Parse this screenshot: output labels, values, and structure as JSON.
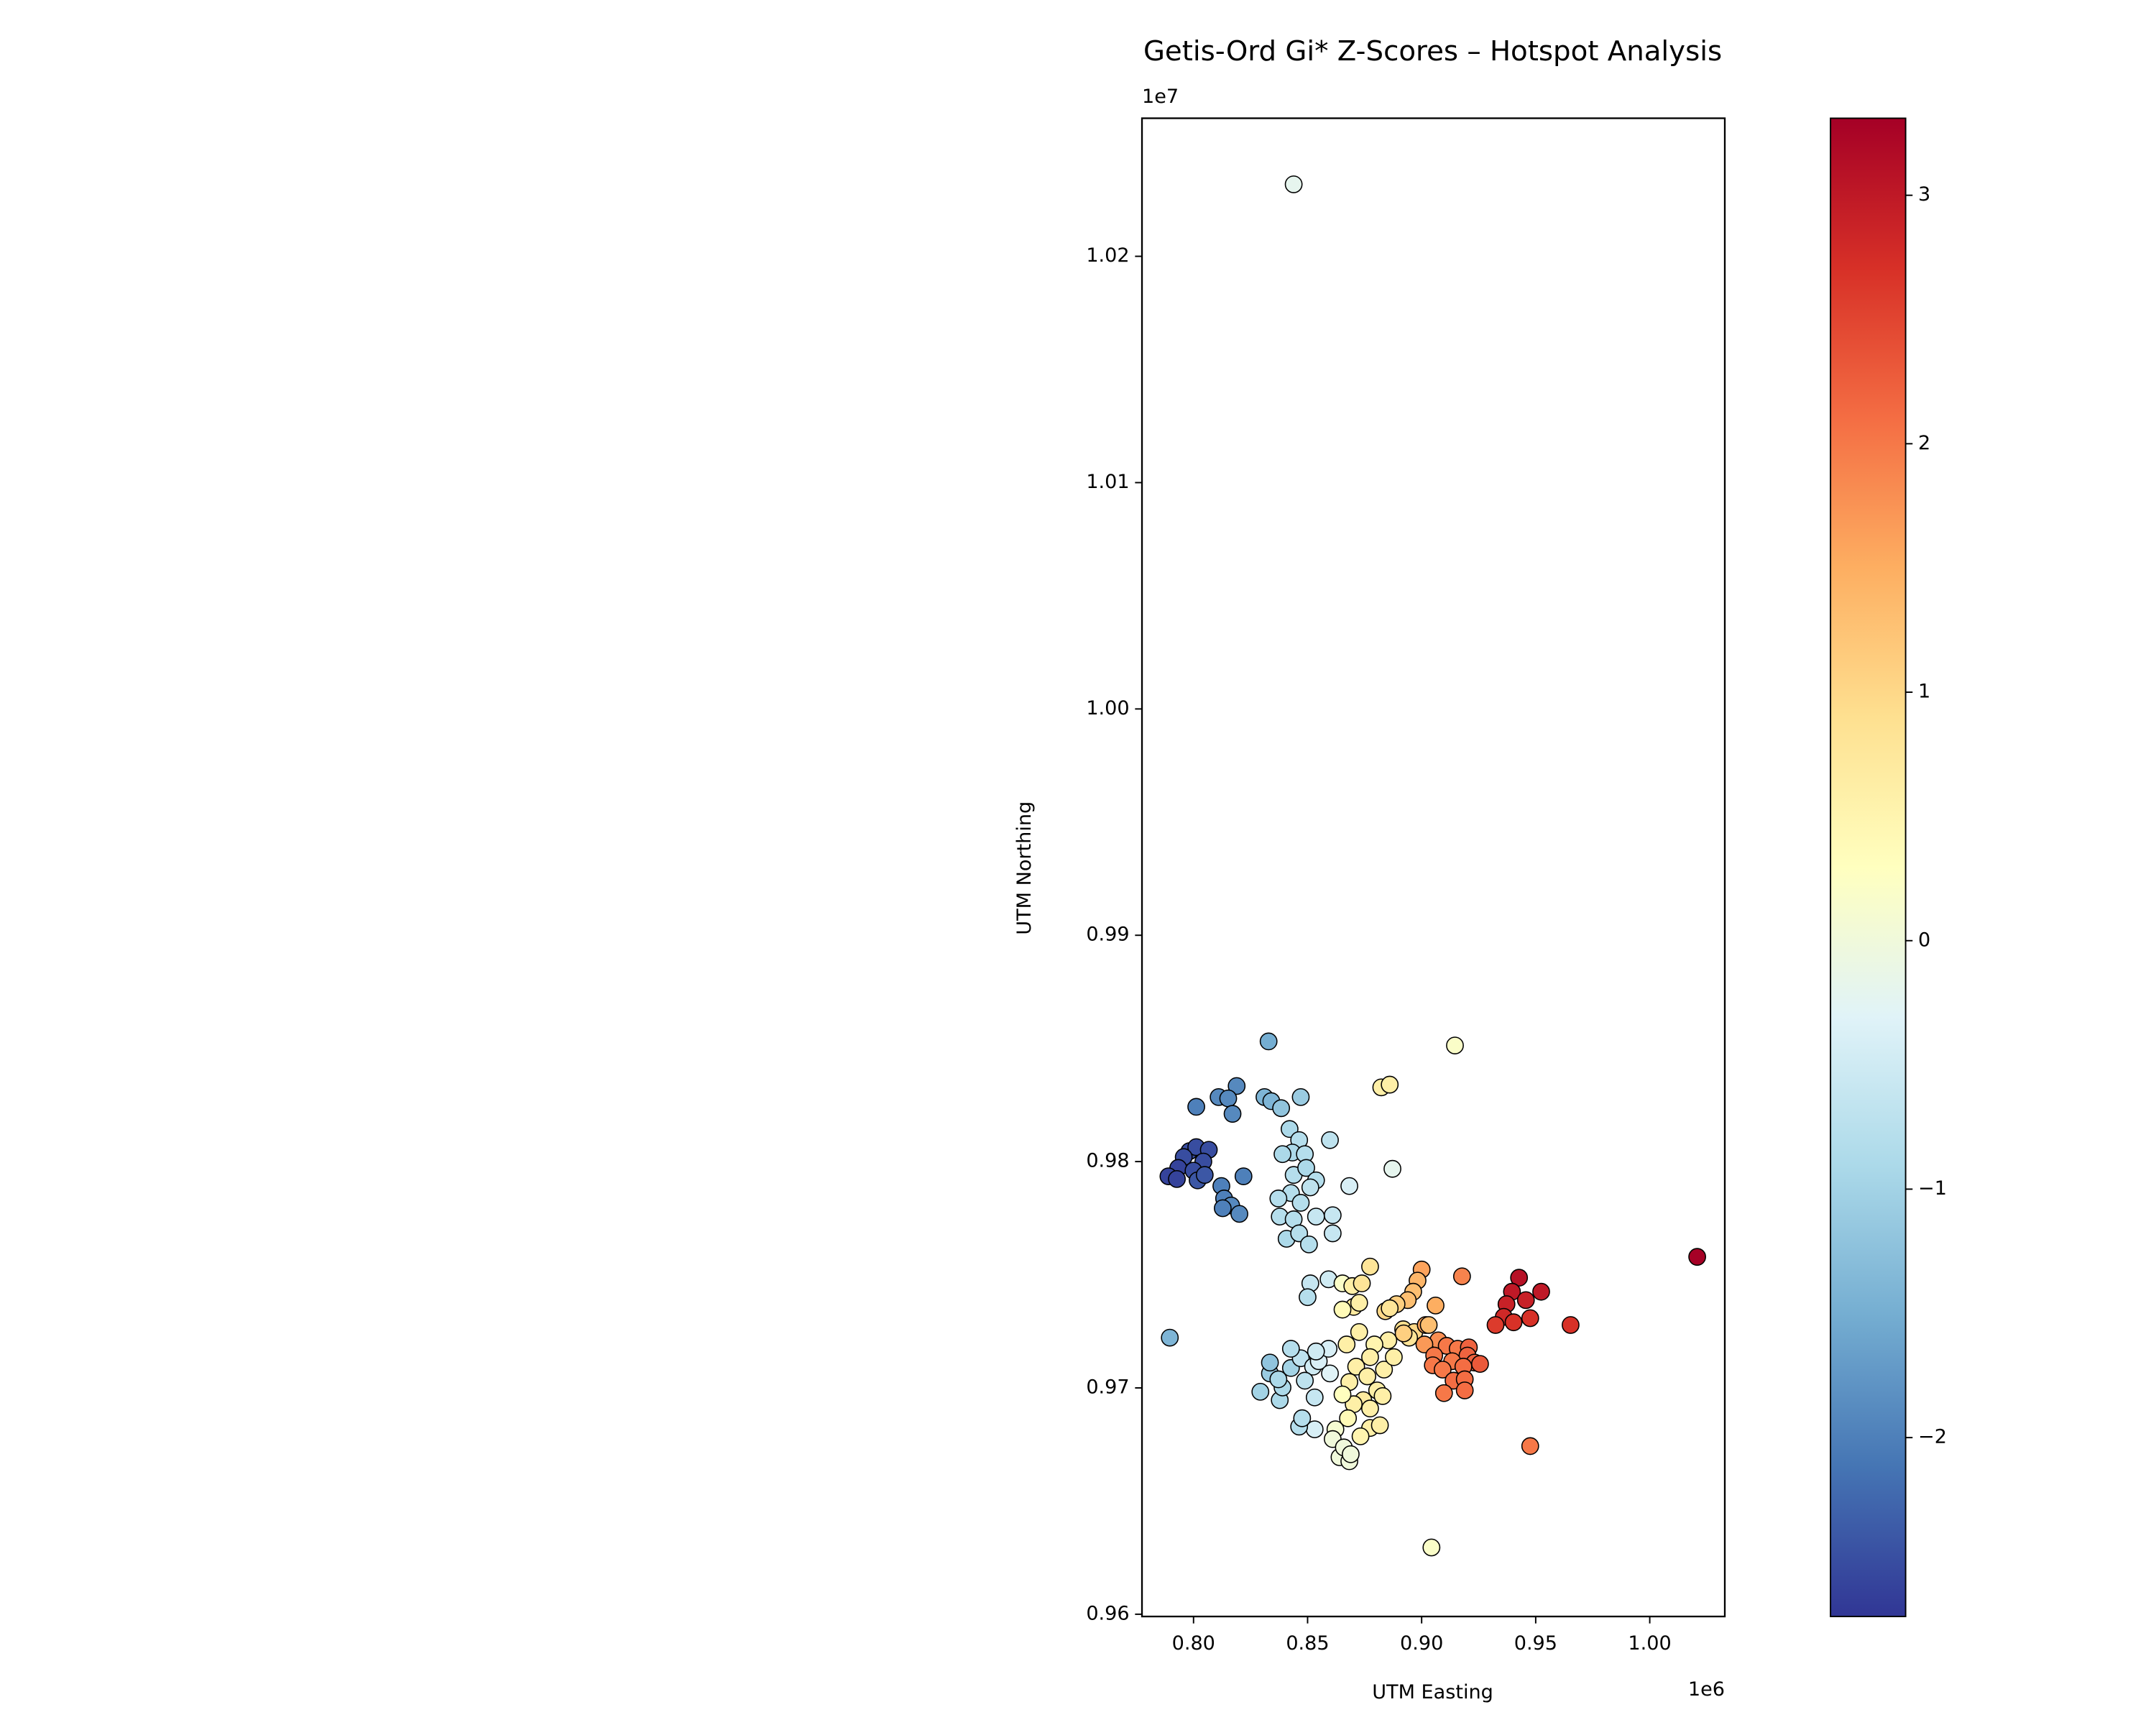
{
  "chart_data": {
    "type": "scatter",
    "title": "Getis-Ord Gi* Z-Scores – Hotspot Analysis",
    "x_label": "UTM Easting",
    "y_label": "UTM Northing",
    "x_offset_text": "1e6",
    "y_offset_text": "1e7",
    "xlim": [
      777400,
      1032900
    ],
    "ylim": [
      9599000,
      10261000
    ],
    "xticks": [
      {
        "value": 800000,
        "label": "0.80"
      },
      {
        "value": 850000,
        "label": "0.85"
      },
      {
        "value": 900000,
        "label": "0.90"
      },
      {
        "value": 950000,
        "label": "0.95"
      },
      {
        "value": 1000000,
        "label": "1.00"
      }
    ],
    "yticks": [
      {
        "value": 9600000,
        "label": "0.96"
      },
      {
        "value": 9700000,
        "label": "0.97"
      },
      {
        "value": 9800000,
        "label": "0.98"
      },
      {
        "value": 9900000,
        "label": "0.99"
      },
      {
        "value": 10000000,
        "label": "1.00"
      },
      {
        "value": 10100000,
        "label": "1.01"
      },
      {
        "value": 10200000,
        "label": "1.02"
      }
    ],
    "colormap": "RdYlBu_r",
    "clim": [
      -2.72,
      3.31
    ],
    "cticks": [
      {
        "value": -2,
        "label": "−2"
      },
      {
        "value": -1,
        "label": "−1"
      },
      0,
      1,
      2,
      3
    ],
    "x": [
      843900,
      914600,
      832900,
      882300,
      886000,
      847000,
      818900,
      811000,
      815200,
      817100,
      801200,
      831100,
      834100,
      838400,
      798200,
      801200,
      806700,
      795700,
      804300,
      793300,
      800000,
      789000,
      792700,
      801800,
      804900,
      812200,
      821900,
      813400,
      816500,
      820100,
      812800,
      842100,
      846300,
      843300,
      848800,
      839000,
      859800,
      843900,
      849400,
      853700,
      842700,
      847000,
      837200,
      851200,
      868300,
      887200,
      837800,
      843900,
      853700,
      861000,
      840800,
      846300,
      850600,
      861000,
      851200,
      850000,
      859200,
      865300,
      869600,
      877400,
      873800,
      870200,
      865300,
      872600,
      900000,
      898200,
      896300,
      893900,
      889000,
      884100,
      906100,
      917700,
      942700,
      939600,
      952400,
      945700,
      937200,
      936000,
      947600,
      940300,
      932400,
      965300,
      1020800,
      789600,
      891900,
      896800,
      901800,
      894500,
      907300,
      901200,
      911000,
      915800,
      920700,
      920100,
      905500,
      913400,
      904900,
      909200,
      923200,
      918300,
      925600,
      914000,
      918900,
      909800,
      918900,
      947600,
      904300,
      885400,
      879300,
      872600,
      867100,
      877400,
      871300,
      883500,
      887800,
      876200,
      868300,
      880500,
      874400,
      882900,
      877400,
      870200,
      865300,
      867700,
      877400,
      881700,
      873200,
      862200,
      861000,
      864000,
      868300,
      865900,
      853100,
      846300,
      847600,
      837800,
      829300,
      839000,
      833500,
      842700,
      833500,
      847000,
      842700,
      852400,
      854900,
      848800,
      859200,
      853700,
      859800,
      853100,
      837200,
      868900,
      886000,
      892100,
      903100
    ],
    "y": [
      10231800,
      9851300,
      9853100,
      9832800,
      9834000,
      9828500,
      9833400,
      9828500,
      9827900,
      9821100,
      9824200,
      9828500,
      9826700,
      9823600,
      9804600,
      9806400,
      9805200,
      9802000,
      9800000,
      9797200,
      9796000,
      9793500,
      9792300,
      9791700,
      9794100,
      9789200,
      9793500,
      9783700,
      9780600,
      9776900,
      9779400,
      9814400,
      9809500,
      9804000,
      9803300,
      9803300,
      9809500,
      9794100,
      9797200,
      9791700,
      9786100,
      9781800,
      9783700,
      9788600,
      9789200,
      9796800,
      9775700,
      9774500,
      9775700,
      9776300,
      9765900,
      9768300,
      9763400,
      9768300,
      9746200,
      9740100,
      9748000,
      9746200,
      9745000,
      9753600,
      9746200,
      9735800,
      9734600,
      9737600,
      9752300,
      9747400,
      9742500,
      9738800,
      9737000,
      9733900,
      9736400,
      9749300,
      9748700,
      9742500,
      9742500,
      9738800,
      9737000,
      9731400,
      9730800,
      9729000,
      9727800,
      9727800,
      9757900,
      9722200,
      9725900,
      9724700,
      9727800,
      9722200,
      9721000,
      9719200,
      9718600,
      9717300,
      9717900,
      9714300,
      9714300,
      9711800,
      9710000,
      9708100,
      9711200,
      9709400,
      9710600,
      9703200,
      9703800,
      9697700,
      9698900,
      9674300,
      9629500,
      9721000,
      9719200,
      9724700,
      9719200,
      9713600,
      9709400,
      9708100,
      9713600,
      9705100,
      9702600,
      9698900,
      9694600,
      9696400,
      9690900,
      9692800,
      9697100,
      9686600,
      9682300,
      9683500,
      9678600,
      9681700,
      9677400,
      9669400,
      9667600,
      9673700,
      9681700,
      9682900,
      9686600,
      9694600,
      9698300,
      9700200,
      9706400,
      9708800,
      9711200,
      9713100,
      9717300,
      9709400,
      9711800,
      9703200,
      9717300,
      9716100,
      9706400,
      9695800,
      9703800,
      9670700,
      9735200,
      9724100,
      9727800
    ],
    "z": [
      -0.2,
      0.2,
      -1.5,
      0.6,
      0.6,
      -1.1,
      -1.9,
      -1.9,
      -1.9,
      -1.9,
      -2.0,
      -1.4,
      -1.4,
      -1.2,
      -2.5,
      -2.5,
      -2.5,
      -2.5,
      -2.5,
      -2.6,
      -2.5,
      -2.6,
      -2.6,
      -2.4,
      -2.4,
      -2.0,
      -2.0,
      -2.0,
      -1.9,
      -1.9,
      -2.0,
      -0.9,
      -0.8,
      -0.9,
      -0.8,
      -0.9,
      -0.7,
      -0.8,
      -0.9,
      -0.8,
      -0.8,
      -0.8,
      -0.8,
      -0.7,
      -0.4,
      -0.2,
      -0.8,
      -0.8,
      -0.6,
      -0.6,
      -0.9,
      -0.8,
      -0.8,
      -0.6,
      -0.6,
      -0.8,
      -0.5,
      0.2,
      0.6,
      0.8,
      0.8,
      0.7,
      0.4,
      0.6,
      1.6,
      1.4,
      1.3,
      1.3,
      1.1,
      1.0,
      1.5,
      1.9,
      3.1,
      3.0,
      3.0,
      2.9,
      2.9,
      2.8,
      2.7,
      2.7,
      2.6,
      2.7,
      3.3,
      -1.4,
      0.9,
      1.0,
      1.6,
      0.8,
      1.8,
      1.7,
      2.0,
      2.0,
      2.2,
      2.2,
      2.0,
      2.0,
      2.0,
      2.0,
      2.2,
      2.1,
      2.3,
      2.1,
      2.1,
      2.0,
      2.1,
      2.0,
      0.2,
      0.6,
      0.5,
      0.6,
      0.6,
      0.6,
      0.6,
      0.6,
      0.6,
      0.6,
      0.6,
      0.6,
      0.7,
      0.6,
      0.6,
      0.6,
      0.3,
      0.4,
      0.6,
      0.6,
      0.5,
      0.1,
      0.0,
      0.0,
      0.0,
      0.0,
      -0.4,
      -0.8,
      -0.8,
      -0.9,
      -1.0,
      -0.9,
      -1.1,
      -1.0,
      -1.2,
      -0.7,
      -0.8,
      -0.5,
      -0.4,
      -0.7,
      -0.4,
      -0.5,
      -0.3,
      -0.6,
      -0.9,
      0.0,
      0.8,
      1.1,
      1.3
    ]
  }
}
